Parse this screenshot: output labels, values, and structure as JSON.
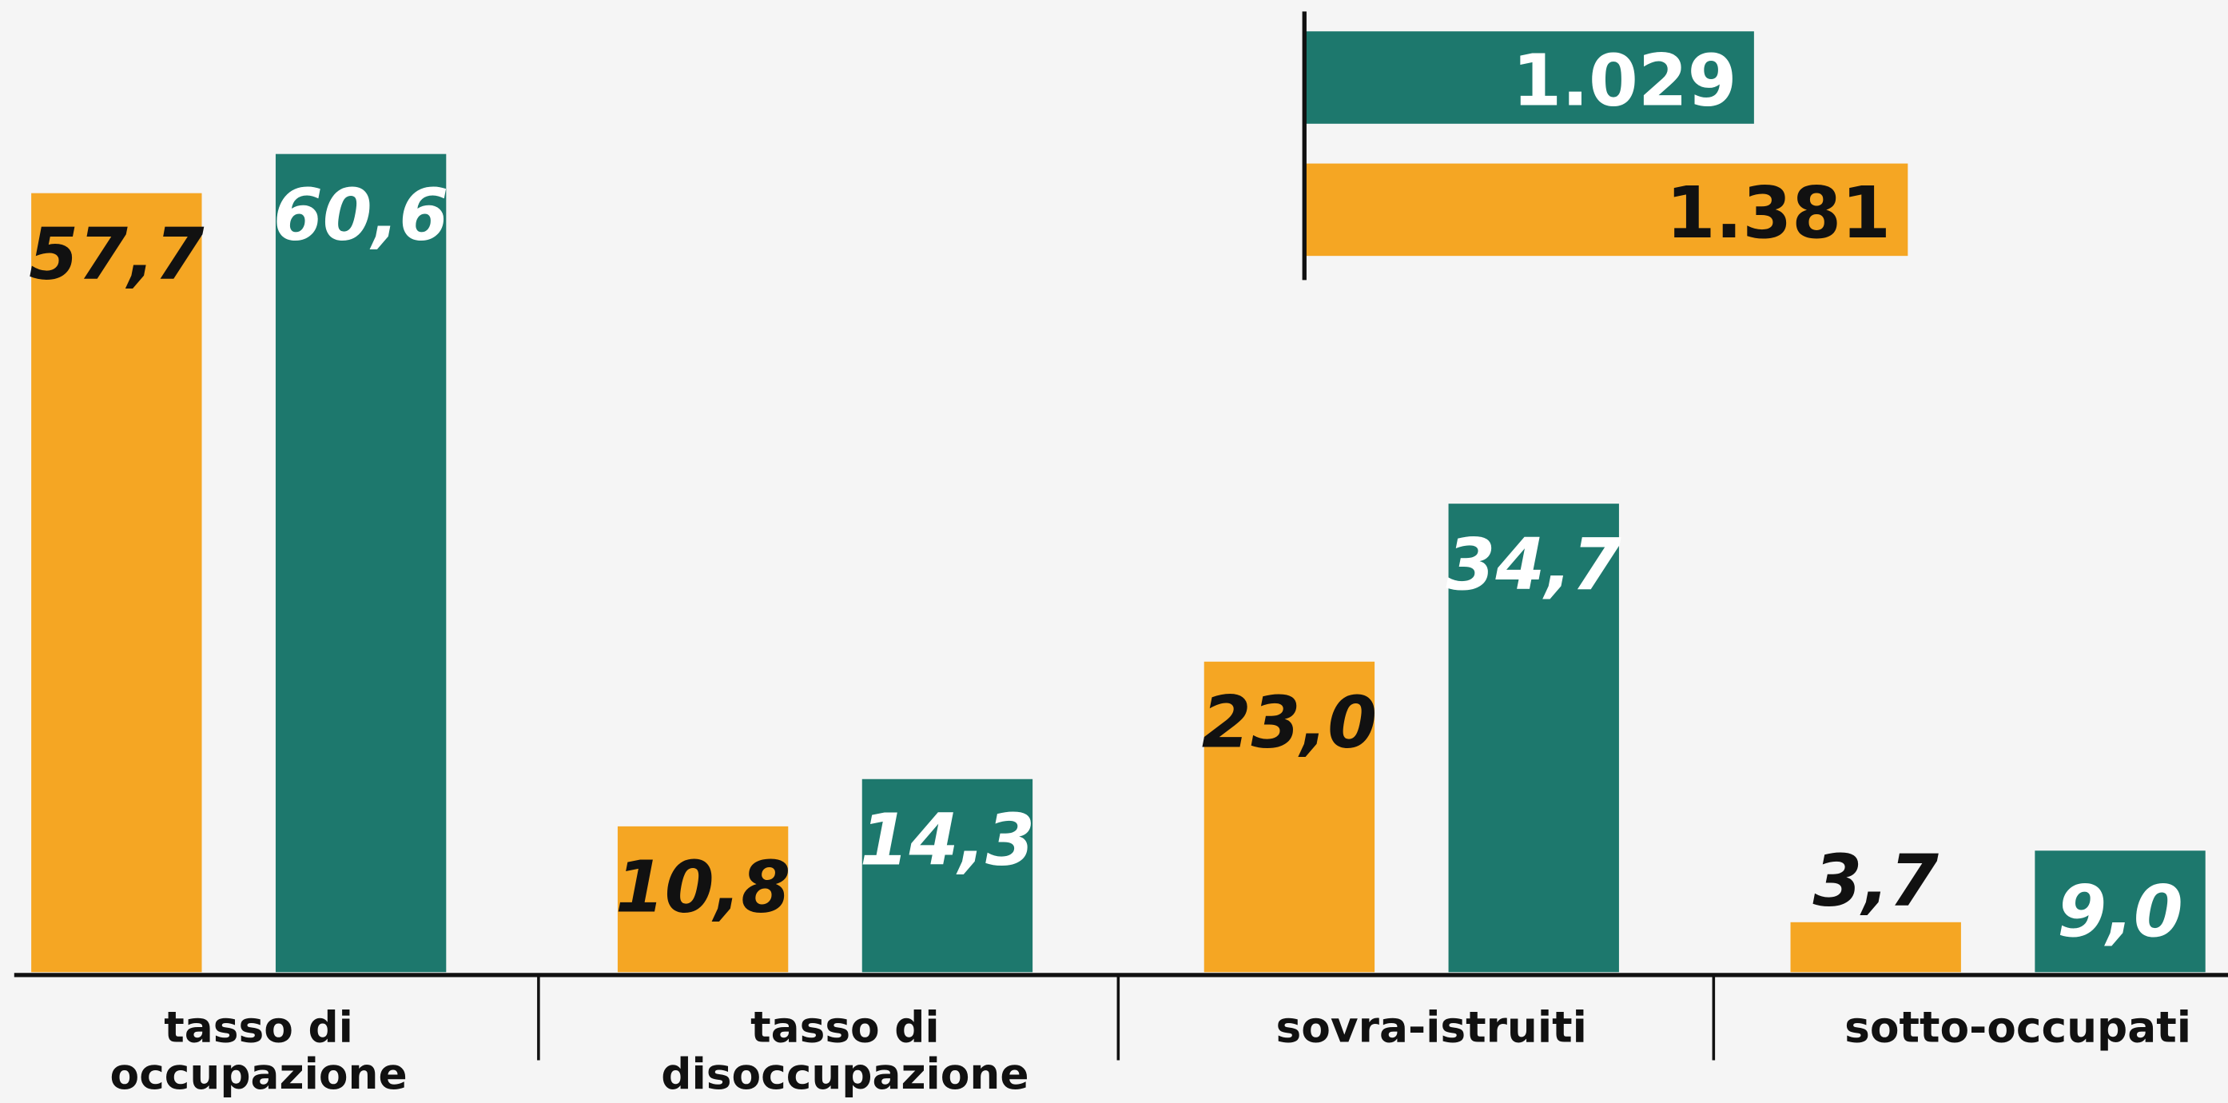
{
  "chart_data": [
    {
      "type": "bar",
      "categories": [
        "tasso di\noccupazione",
        "tasso di\ndisoccupazione",
        "sovra-istruiti",
        "sotto-occupati"
      ],
      "series": [
        {
          "color": "#f5a623",
          "values": [
            57.7,
            10.8,
            23.0,
            3.7
          ],
          "value_labels": [
            "57,7",
            "10,8",
            "23,0",
            "3,7"
          ]
        },
        {
          "color": "#1d786d",
          "values": [
            60.6,
            14.3,
            34.7,
            9.0
          ],
          "value_labels": [
            "60,6",
            "14,3",
            "34,7",
            "9,0"
          ]
        }
      ],
      "ylim": [
        0,
        72
      ]
    },
    {
      "type": "barh",
      "series": [
        {
          "color": "#1d786d",
          "values": [
            1029
          ],
          "value_labels": [
            "1.029"
          ]
        },
        {
          "color": "#f5a623",
          "values": [
            1381
          ],
          "value_labels": [
            "1.381"
          ]
        }
      ],
      "xlim": [
        0,
        2000
      ]
    }
  ]
}
